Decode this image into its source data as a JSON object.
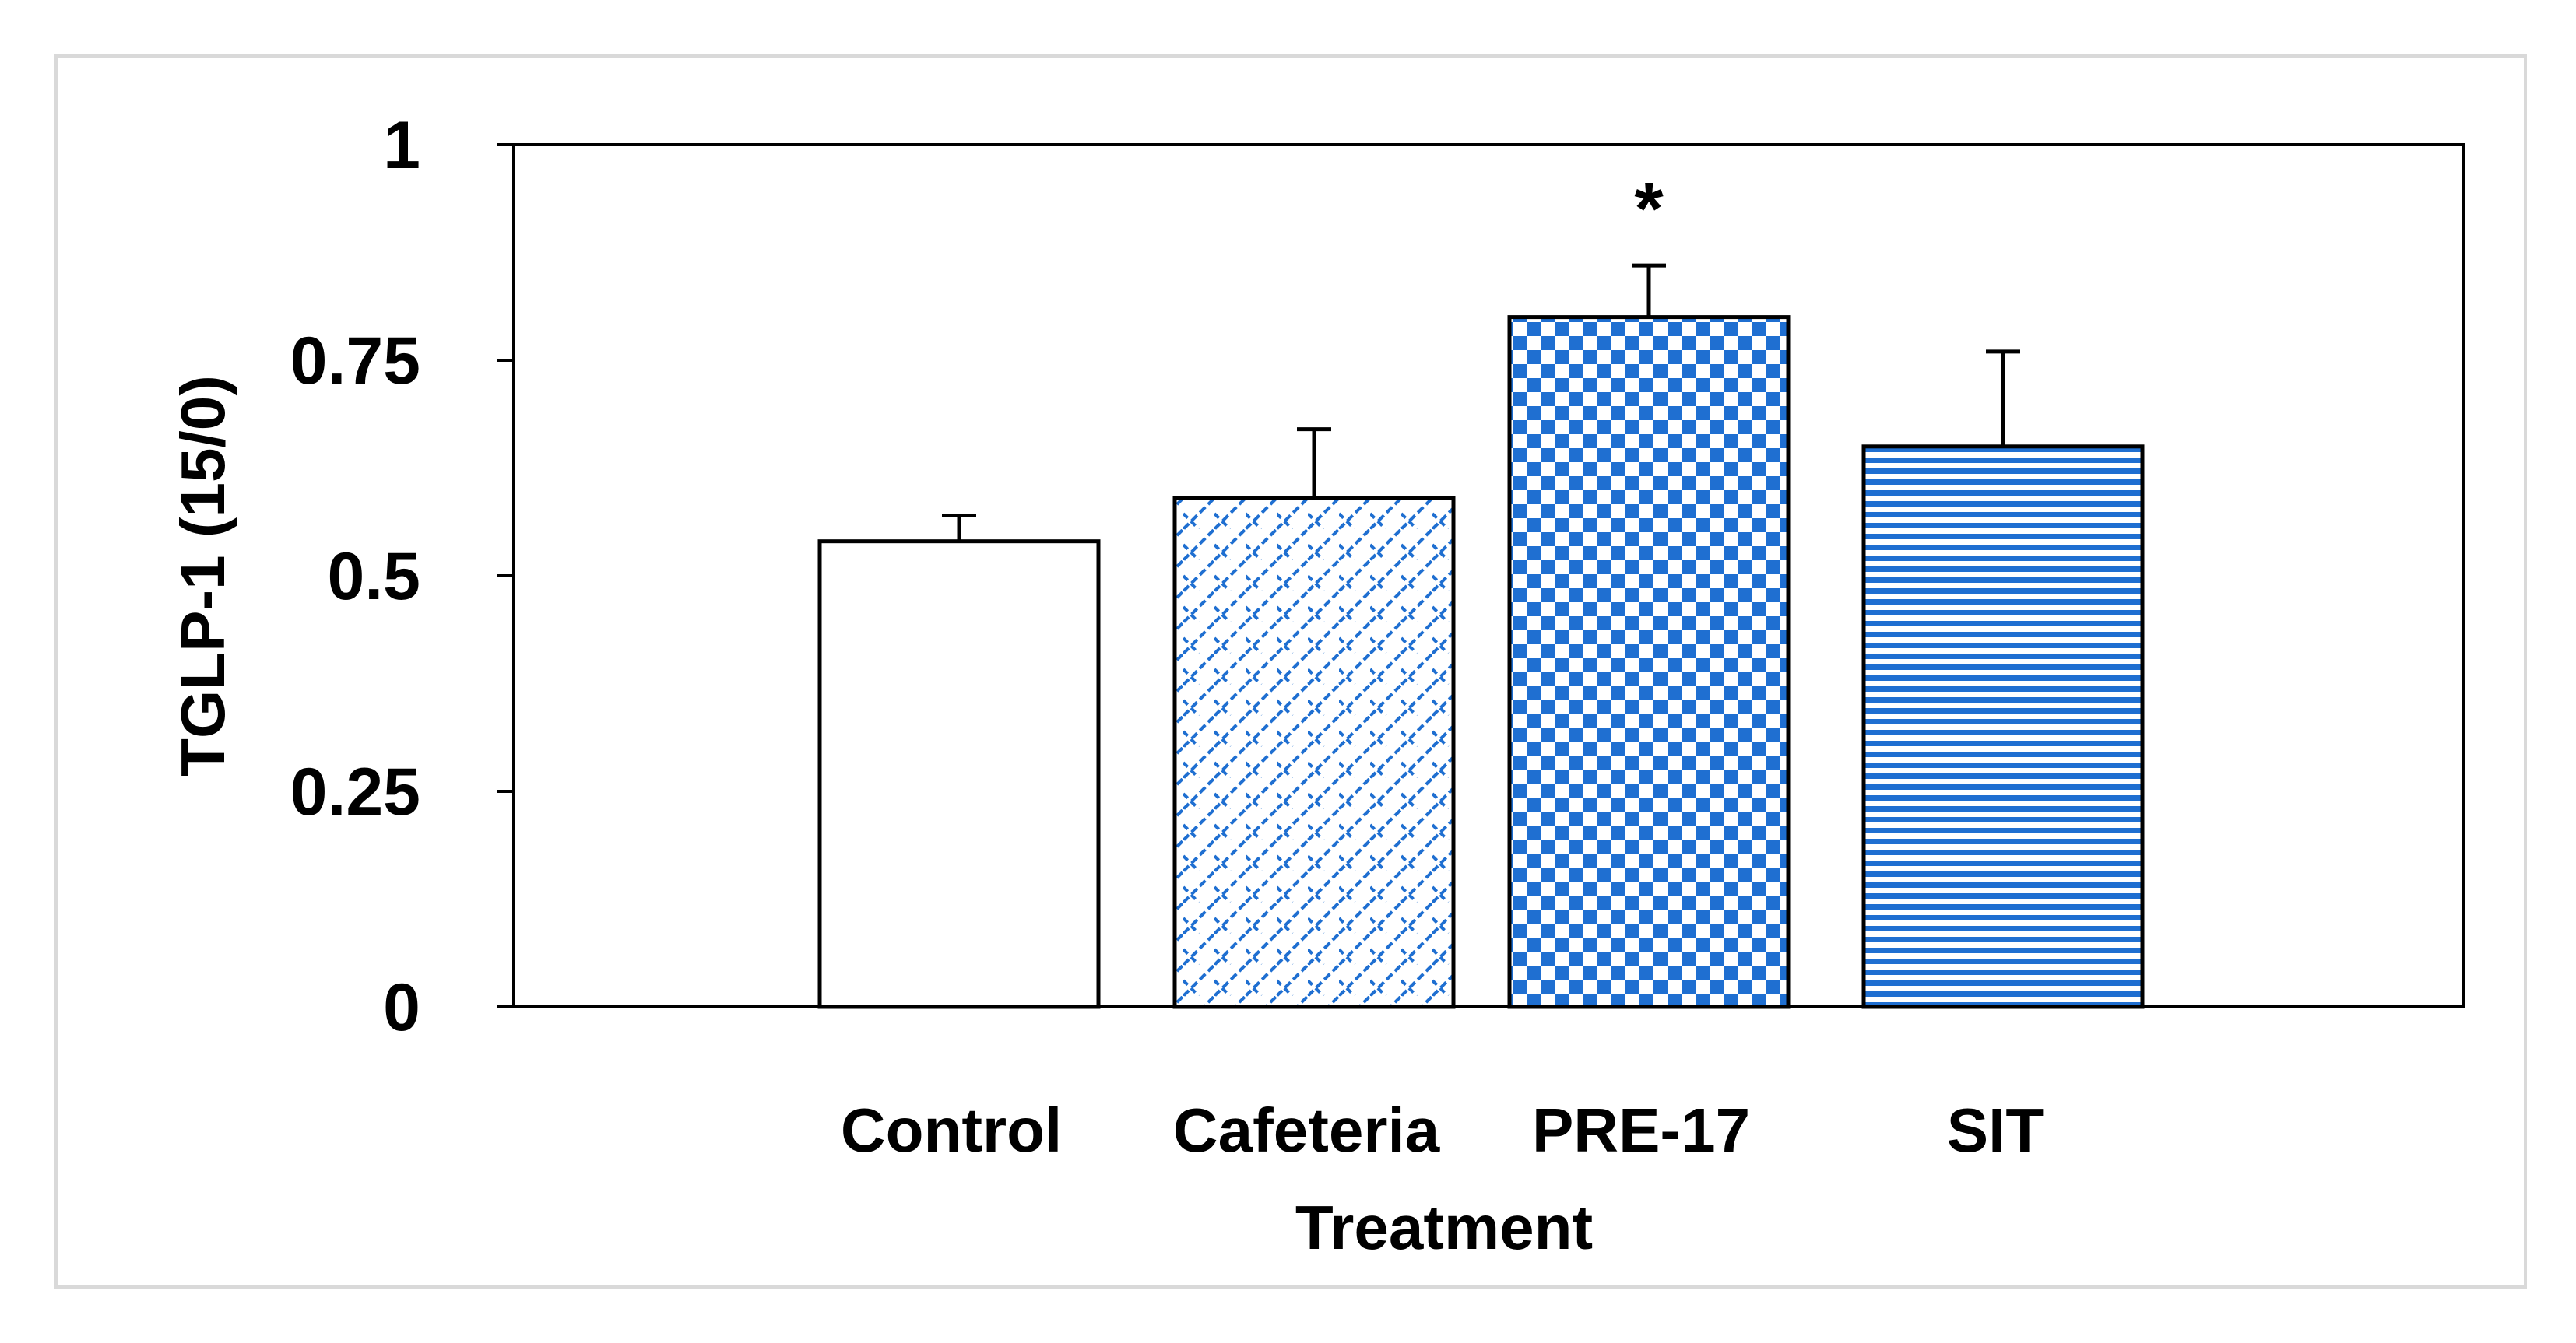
{
  "chart_data": {
    "type": "bar",
    "title": "",
    "xlabel": "Treatment",
    "ylabel": "TGLP-1 (15/0)",
    "ylim": [
      0,
      1
    ],
    "yticks": [
      0,
      0.25,
      0.5,
      0.75,
      1
    ],
    "ytick_labels": [
      "0",
      "0.25",
      "0.5",
      "0.75",
      "1"
    ],
    "grid": false,
    "categories": [
      "Control",
      "Cafeteria",
      "PRE-17",
      "SIT"
    ],
    "values": [
      0.54,
      0.59,
      0.8,
      0.65
    ],
    "errors": [
      0.03,
      0.08,
      0.06,
      0.11
    ],
    "patterns": [
      "solid-white",
      "diagonal-brick",
      "checkerboard",
      "horizontal-stripes"
    ],
    "annotations": [
      {
        "category": "PRE-17",
        "text": "*"
      }
    ],
    "colors": {
      "accent": "#1f6fd1",
      "bar_outline": "#000000",
      "frame": "#d9d9d9"
    }
  }
}
